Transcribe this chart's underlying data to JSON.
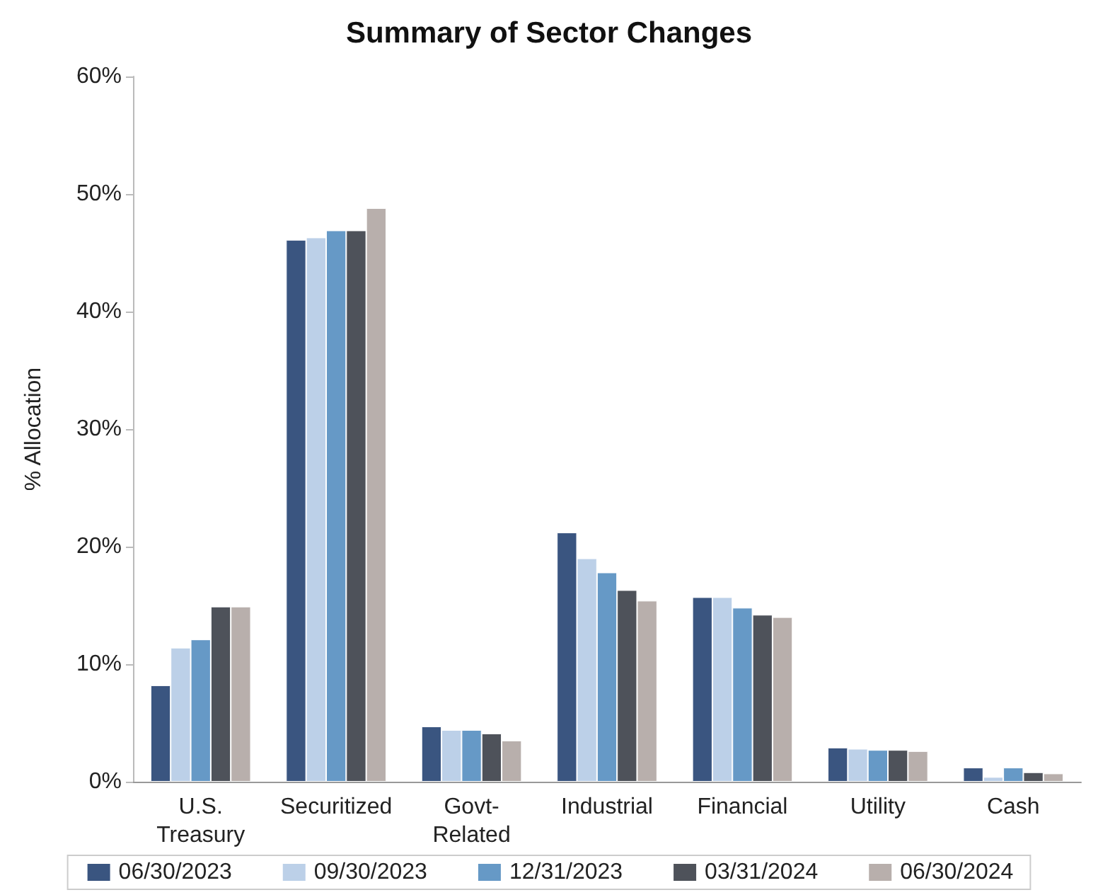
{
  "chart_data": {
    "type": "bar",
    "title": "Summary of Sector Changes",
    "ylabel": "% Allocation",
    "categories": [
      "U.S.\nTreasury",
      "Securitized",
      "Govt-\nRelated",
      "Industrial",
      "Financial",
      "Utility",
      "Cash"
    ],
    "series": [
      {
        "name": "06/30/2023",
        "color": "#3a5580",
        "values": [
          8.2,
          46.1,
          4.7,
          21.2,
          15.7,
          2.9,
          1.2
        ]
      },
      {
        "name": "09/30/2023",
        "color": "#bcd0e8",
        "values": [
          11.4,
          46.3,
          4.4,
          19.0,
          15.7,
          2.8,
          0.4
        ]
      },
      {
        "name": "12/31/2023",
        "color": "#6699c6",
        "values": [
          12.1,
          46.9,
          4.4,
          17.8,
          14.8,
          2.7,
          1.2
        ]
      },
      {
        "name": "03/31/2024",
        "color": "#4e525a",
        "values": [
          14.9,
          46.9,
          4.1,
          16.3,
          14.2,
          2.7,
          0.8
        ]
      },
      {
        "name": "06/30/2024",
        "color": "#b8afac",
        "values": [
          14.9,
          48.8,
          3.5,
          15.4,
          14.0,
          2.6,
          0.7
        ]
      }
    ],
    "ylim": [
      0,
      60
    ],
    "yticks": [
      {
        "value": 0,
        "label": "0%"
      },
      {
        "value": 10,
        "label": "10%"
      },
      {
        "value": 20,
        "label": "20%"
      },
      {
        "value": 30,
        "label": "30%"
      },
      {
        "value": 40,
        "label": "40%"
      },
      {
        "value": 50,
        "label": "50%"
      },
      {
        "value": 60,
        "label": "60%"
      }
    ],
    "grid": false,
    "legend": "bottom"
  }
}
